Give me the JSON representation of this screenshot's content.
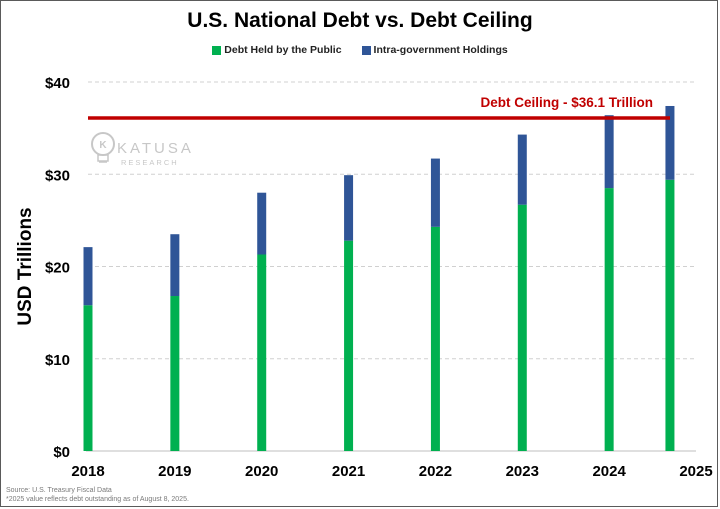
{
  "chart_data": {
    "type": "bar",
    "stacked": true,
    "title": "U.S. National Debt vs. Debt Ceiling",
    "ylabel": "USD Trillions",
    "ylim": [
      0,
      40
    ],
    "yticks": [
      0,
      10,
      20,
      30,
      40
    ],
    "ytick_labels": [
      "$0",
      "$10",
      "$20",
      "$30",
      "$40"
    ],
    "x_ticks": [
      "2018",
      "2019",
      "2020",
      "2021",
      "2022",
      "2023",
      "2024",
      "2025"
    ],
    "xlim": [
      2018,
      2025
    ],
    "grid": true,
    "legend_position": "top",
    "x": [
      2018,
      2019,
      2020,
      2021,
      2022,
      2023,
      2024,
      2024.7
    ],
    "series": [
      {
        "name": "Debt Held by the Public",
        "color": "#00b050",
        "values": [
          15.8,
          16.8,
          21.3,
          22.8,
          24.3,
          26.7,
          28.5,
          29.4
        ]
      },
      {
        "name": "Intra-government Holdings",
        "color": "#2f5597",
        "values": [
          6.3,
          6.7,
          6.7,
          7.1,
          7.4,
          7.6,
          7.9,
          8.0
        ]
      }
    ],
    "reference_line": {
      "label": "Debt Ceiling - $36.1 Trillion",
      "value": 36.1,
      "color": "#c00000"
    }
  },
  "watermark": {
    "name": "KATUSA",
    "sub": "RESEARCH"
  },
  "footnotes": [
    "Source: U.S. Treasury Fiscal Data",
    "*2025 value reflects debt outstanding as of August 8, 2025."
  ]
}
